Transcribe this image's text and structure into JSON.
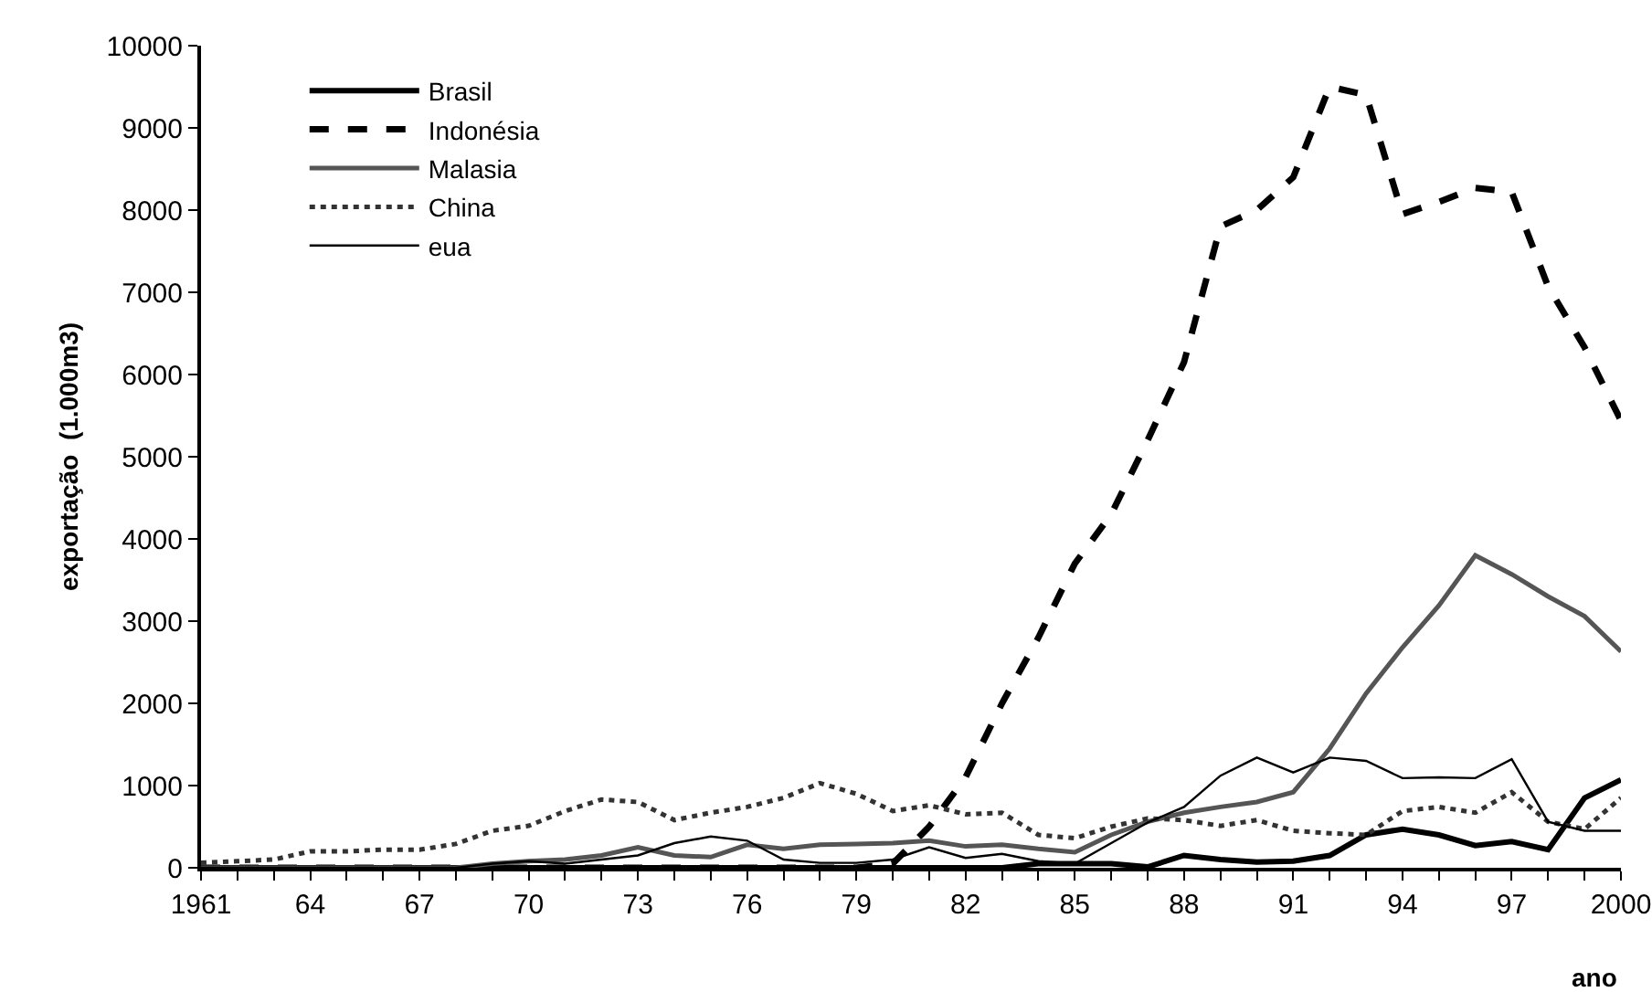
{
  "chart_data": {
    "type": "line",
    "xlabel": "ano",
    "ylabel": "exportação  (1.000m3)",
    "x": [
      1961,
      1962,
      1963,
      1964,
      1965,
      1966,
      1967,
      1968,
      1969,
      1970,
      1971,
      1972,
      1973,
      1974,
      1975,
      1976,
      1977,
      1978,
      1979,
      1980,
      1981,
      1982,
      1983,
      1984,
      1985,
      1986,
      1987,
      1988,
      1989,
      1990,
      1991,
      1992,
      1993,
      1994,
      1995,
      1996,
      1997,
      1998,
      1999,
      2000
    ],
    "series": [
      {
        "name": "Brasil",
        "color": "#000000",
        "line_style": "solid",
        "values": [
          0,
          0,
          0,
          0,
          0,
          0,
          0,
          0,
          0,
          0,
          0,
          0,
          0,
          0,
          0,
          0,
          0,
          0,
          0,
          0,
          0,
          0,
          0,
          50,
          50,
          50,
          10,
          150,
          100,
          70,
          80,
          150,
          400,
          470,
          400,
          270,
          320,
          220,
          850,
          1070
        ]
      },
      {
        "name": "Indonésia",
        "color": "#000000",
        "line_style": "dashed",
        "values": [
          0,
          0,
          0,
          0,
          0,
          0,
          0,
          0,
          0,
          0,
          0,
          0,
          0,
          0,
          0,
          0,
          0,
          0,
          0,
          50,
          500,
          1100,
          2000,
          2800,
          3700,
          4300,
          5200,
          6150,
          7800,
          8000,
          8400,
          9500,
          9400,
          7950,
          8100,
          8270,
          8220,
          7070,
          6330,
          5440
        ]
      },
      {
        "name": "Malasia",
        "color": "#555555",
        "line_style": "solid",
        "values": [
          0,
          0,
          0,
          0,
          0,
          0,
          0,
          0,
          50,
          80,
          100,
          150,
          250,
          150,
          130,
          280,
          230,
          280,
          290,
          300,
          330,
          260,
          280,
          230,
          190,
          400,
          560,
          670,
          740,
          800,
          920,
          1450,
          2120,
          2680,
          3190,
          3800,
          3570,
          3300,
          3060,
          2630
        ]
      },
      {
        "name": "China",
        "color": "#333333",
        "line_style": "dotted",
        "values": [
          60,
          80,
          100,
          200,
          200,
          220,
          220,
          290,
          450,
          510,
          690,
          830,
          800,
          580,
          670,
          740,
          850,
          1030,
          900,
          690,
          760,
          650,
          670,
          400,
          360,
          500,
          600,
          580,
          510,
          580,
          450,
          420,
          400,
          690,
          740,
          670,
          920,
          560,
          470,
          850
        ]
      },
      {
        "name": "eua",
        "color": "#000000",
        "line_style": "solid",
        "values": [
          0,
          0,
          0,
          0,
          0,
          0,
          0,
          0,
          50,
          80,
          50,
          100,
          150,
          300,
          380,
          330,
          100,
          60,
          60,
          100,
          250,
          120,
          170,
          80,
          50,
          300,
          550,
          740,
          1120,
          1340,
          1160,
          1340,
          1300,
          1090,
          1100,
          1090,
          1320,
          560,
          450,
          450
        ]
      }
    ],
    "xlim": [
      1961,
      2000
    ],
    "xticks": [
      {
        "value": 1961,
        "label": "1961"
      },
      {
        "value": 1962,
        "label": null
      },
      {
        "value": 1963,
        "label": null
      },
      {
        "value": 1964,
        "label": "64"
      },
      {
        "value": 1965,
        "label": null
      },
      {
        "value": 1966,
        "label": null
      },
      {
        "value": 1967,
        "label": "67"
      },
      {
        "value": 1968,
        "label": null
      },
      {
        "value": 1969,
        "label": null
      },
      {
        "value": 1970,
        "label": "70"
      },
      {
        "value": 1971,
        "label": null
      },
      {
        "value": 1972,
        "label": null
      },
      {
        "value": 1973,
        "label": "73"
      },
      {
        "value": 1974,
        "label": null
      },
      {
        "value": 1975,
        "label": null
      },
      {
        "value": 1976,
        "label": "76"
      },
      {
        "value": 1977,
        "label": null
      },
      {
        "value": 1978,
        "label": null
      },
      {
        "value": 1979,
        "label": "79"
      },
      {
        "value": 1980,
        "label": null
      },
      {
        "value": 1981,
        "label": null
      },
      {
        "value": 1982,
        "label": "82"
      },
      {
        "value": 1983,
        "label": null
      },
      {
        "value": 1984,
        "label": null
      },
      {
        "value": 1985,
        "label": "85"
      },
      {
        "value": 1986,
        "label": null
      },
      {
        "value": 1987,
        "label": null
      },
      {
        "value": 1988,
        "label": "88"
      },
      {
        "value": 1989,
        "label": null
      },
      {
        "value": 1990,
        "label": null
      },
      {
        "value": 1991,
        "label": "91"
      },
      {
        "value": 1992,
        "label": null
      },
      {
        "value": 1993,
        "label": null
      },
      {
        "value": 1994,
        "label": "94"
      },
      {
        "value": 1995,
        "label": null
      },
      {
        "value": 1996,
        "label": null
      },
      {
        "value": 1997,
        "label": "97"
      },
      {
        "value": 1998,
        "label": null
      },
      {
        "value": 1999,
        "label": null
      },
      {
        "value": 2000,
        "label": "2000"
      }
    ],
    "ylim": [
      0,
      10000
    ],
    "yticks": [
      0,
      1000,
      2000,
      3000,
      4000,
      5000,
      6000,
      7000,
      8000,
      9000,
      10000
    ],
    "grid": false,
    "legend": "top left",
    "marker": "none"
  }
}
